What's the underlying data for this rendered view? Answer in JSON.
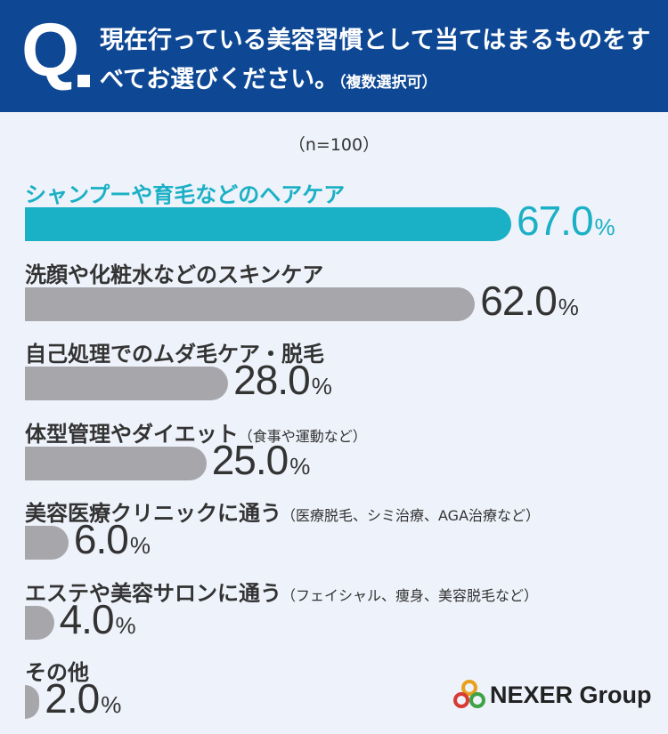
{
  "question": {
    "mark": "Q",
    "text": "現在行っている美容習慣として当てはまるものをすべてお選びください。",
    "note": "（複数選択可）"
  },
  "sample_size": "（n=100）",
  "chart_data": {
    "type": "bar",
    "orientation": "horizontal",
    "categories": [
      "シャンプーや育毛などのヘアケア",
      "洗顔や化粧水などのスキンケア",
      "自己処理でのムダ毛ケア・脱毛",
      "体型管理やダイエット",
      "美容医療クリニックに通う",
      "エステや美容サロンに通う",
      "その他"
    ],
    "notes": [
      "",
      "",
      "",
      "（食事や運動など）",
      "（医療脱毛、シミ治療、AGA治療など）",
      "（フェイシャル、痩身、美容脱毛など）",
      ""
    ],
    "values": [
      67.0,
      62.0,
      28.0,
      25.0,
      6.0,
      4.0,
      2.0
    ],
    "value_labels": [
      "67.0",
      "62.0",
      "28.0",
      "25.0",
      "6.0",
      "4.0",
      "2.0"
    ],
    "unit": "%",
    "highlight_index": 0,
    "colors": {
      "highlight": "#1ab0c5",
      "default": "#a7a7ab"
    }
  },
  "logo": {
    "name": "NEXER Group"
  }
}
